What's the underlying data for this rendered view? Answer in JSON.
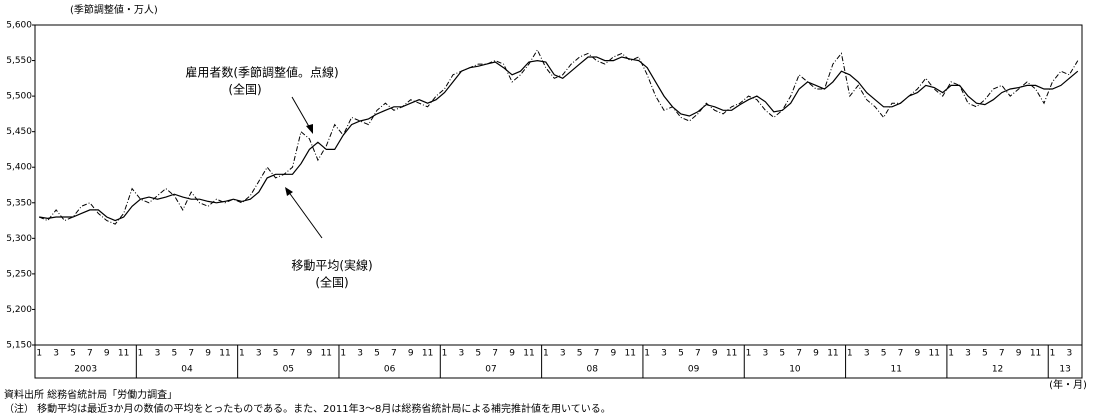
{
  "chart_data": {
    "type": "line",
    "unit_label": "(季節調整値・万人)",
    "x_unit_label": "(年・月)",
    "annotations": [
      "雇用者数(季節調整値。点線)",
      "(全国)",
      "移動平均(実線)",
      "(全国)"
    ],
    "source": "資料出所 総務省統計局「労働力調査」",
    "note": "（注） 移動平均は最近3か月の数値の平均をとったものである。また、2011年3～8月は総務省統計局による補完推計値を用いている。",
    "year_labels": [
      "2003",
      "04",
      "05",
      "06",
      "07",
      "08",
      "09",
      "10",
      "11",
      "12",
      "13"
    ],
    "categories": [
      "1",
      null,
      "3",
      null,
      "5",
      null,
      "7",
      null,
      "9",
      null,
      "11",
      null,
      "1",
      null,
      "3",
      null,
      "5",
      null,
      "7",
      null,
      "9",
      null,
      "11",
      null,
      "1",
      null,
      "3",
      null,
      "5",
      null,
      "7",
      null,
      "9",
      null,
      "11",
      null,
      "1",
      null,
      "3",
      null,
      "5",
      null,
      "7",
      null,
      "9",
      null,
      "11",
      null,
      "1",
      null,
      "3",
      null,
      "5",
      null,
      "7",
      null,
      "9",
      null,
      "11",
      null,
      "1",
      null,
      "3",
      null,
      "5",
      null,
      "7",
      null,
      "9",
      null,
      "11",
      null,
      "1",
      null,
      "3",
      null,
      "5",
      null,
      "7",
      null,
      "9",
      null,
      "11",
      null,
      "1",
      null,
      "3",
      null,
      "5",
      null,
      "7",
      null,
      "9",
      null,
      "11",
      null,
      "1",
      null,
      "3",
      null,
      "5",
      null,
      "7",
      null,
      "9",
      null,
      "11",
      null,
      "1",
      null,
      "3",
      null,
      "5",
      null,
      "7",
      null,
      "9",
      null,
      "11",
      null,
      "1",
      null,
      "3",
      null
    ],
    "series": [
      {
        "name": "雇用者数(季節調整値)",
        "color": "#000000",
        "line_style": "dashed",
        "values": [
          5330,
          5325,
          5340,
          5325,
          5330,
          5345,
          5350,
          5335,
          5325,
          5320,
          5335,
          5370,
          5355,
          5350,
          5360,
          5370,
          5360,
          5340,
          5365,
          5350,
          5345,
          5355,
          5350,
          5355,
          5350,
          5360,
          5380,
          5400,
          5385,
          5390,
          5400,
          5450,
          5440,
          5410,
          5430,
          5460,
          5445,
          5470,
          5465,
          5460,
          5480,
          5490,
          5480,
          5485,
          5495,
          5490,
          5485,
          5500,
          5510,
          5530,
          5535,
          5540,
          5545,
          5545,
          5550,
          5545,
          5520,
          5530,
          5545,
          5565,
          5540,
          5525,
          5530,
          5545,
          5555,
          5560,
          5550,
          5545,
          5555,
          5560,
          5550,
          5555,
          5530,
          5500,
          5480,
          5485,
          5470,
          5465,
          5475,
          5490,
          5480,
          5475,
          5485,
          5490,
          5500,
          5495,
          5480,
          5470,
          5480,
          5500,
          5530,
          5520,
          5510,
          5510,
          5545,
          5560,
          5500,
          5515,
          5495,
          5485,
          5470,
          5490,
          5490,
          5500,
          5510,
          5525,
          5510,
          5500,
          5520,
          5515,
          5490,
          5485,
          5495,
          5510,
          5515,
          5500,
          5510,
          5520,
          5510,
          5490,
          5520,
          5535,
          5530,
          5550
        ]
      },
      {
        "name": "移動平均",
        "color": "#000000",
        "line_style": "solid",
        "values": [
          5330,
          5328,
          5330,
          5330,
          5330,
          5335,
          5340,
          5340,
          5330,
          5325,
          5330,
          5345,
          5355,
          5358,
          5355,
          5358,
          5362,
          5358,
          5355,
          5355,
          5352,
          5350,
          5352,
          5355,
          5352,
          5355,
          5365,
          5385,
          5390,
          5390,
          5390,
          5405,
          5425,
          5435,
          5425,
          5425,
          5445,
          5460,
          5465,
          5468,
          5475,
          5480,
          5485,
          5485,
          5490,
          5495,
          5490,
          5495,
          5505,
          5520,
          5535,
          5540,
          5542,
          5545,
          5548,
          5540,
          5530,
          5535,
          5548,
          5550,
          5548,
          5530,
          5525,
          5535,
          5545,
          5555,
          5555,
          5550,
          5550,
          5555,
          5552,
          5550,
          5540,
          5520,
          5500,
          5485,
          5475,
          5472,
          5478,
          5488,
          5485,
          5480,
          5480,
          5488,
          5495,
          5500,
          5492,
          5478,
          5480,
          5490,
          5510,
          5520,
          5515,
          5510,
          5520,
          5535,
          5530,
          5520,
          5505,
          5495,
          5485,
          5485,
          5490,
          5500,
          5505,
          5515,
          5512,
          5505,
          5515,
          5515,
          5500,
          5490,
          5488,
          5495,
          5505,
          5510,
          5512,
          5515,
          5515,
          5510,
          5510,
          5515,
          5525,
          5535
        ]
      }
    ],
    "ylim": [
      5150,
      5600
    ],
    "yticks": [
      {
        "value": 5150,
        "label": "5,150"
      },
      {
        "value": 5200,
        "label": "5,200"
      },
      {
        "value": 5250,
        "label": "5,250"
      },
      {
        "value": 5300,
        "label": "5,300"
      },
      {
        "value": 5350,
        "label": "5,350"
      },
      {
        "value": 5400,
        "label": "5,400"
      },
      {
        "value": 5450,
        "label": "5,450"
      },
      {
        "value": 5500,
        "label": "5,500"
      },
      {
        "value": 5550,
        "label": "5,550"
      },
      {
        "value": 5600,
        "label": "5,600"
      }
    ],
    "grid": false
  }
}
